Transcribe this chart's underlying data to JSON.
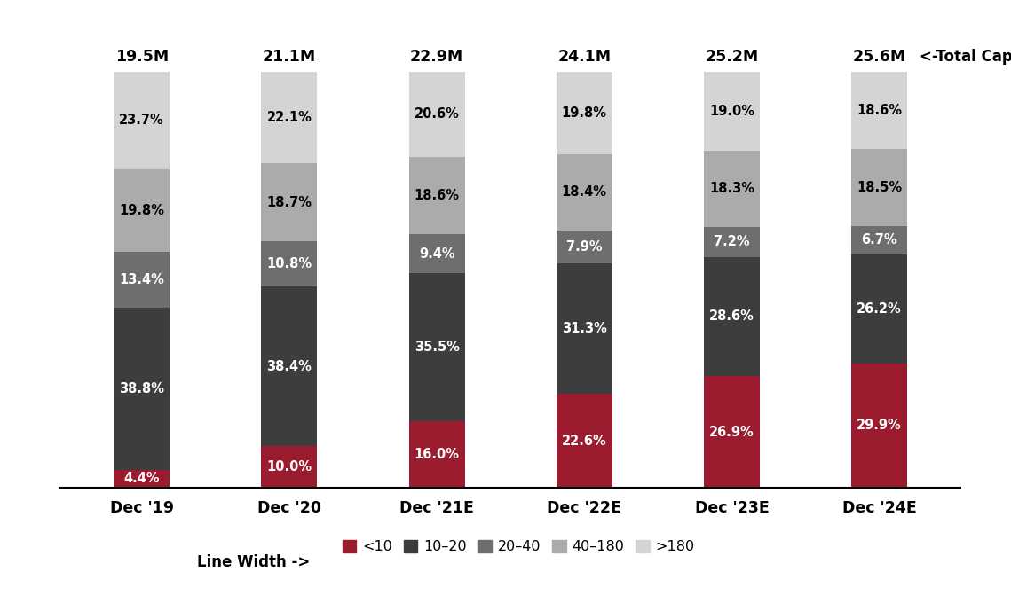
{
  "categories": [
    "Dec '19",
    "Dec '20",
    "Dec '21E",
    "Dec '22E",
    "Dec '23E",
    "Dec '24E"
  ],
  "total_labels": [
    "19.5M",
    "21.1M",
    "22.9M",
    "24.1M",
    "25.2M",
    "25.6M"
  ],
  "series": {
    "<10": [
      4.4,
      10.0,
      16.0,
      22.6,
      26.9,
      29.9
    ],
    "10-20": [
      38.8,
      38.4,
      35.5,
      31.3,
      28.6,
      26.2
    ],
    "20-40": [
      13.4,
      10.8,
      9.4,
      7.9,
      7.2,
      6.7
    ],
    "40-180": [
      19.8,
      18.7,
      18.6,
      18.4,
      18.3,
      18.5
    ],
    ">180": [
      23.7,
      22.1,
      20.6,
      19.8,
      19.0,
      18.6
    ]
  },
  "colors": {
    "<10": "#9B1C2E",
    "10-20": "#3D3D3D",
    "20-40": "#6E6E6E",
    "40-180": "#ABABAB",
    ">180": "#D4D4D4"
  },
  "text_colors": {
    "<10": "#FFFFFF",
    "10-20": "#FFFFFF",
    "20-40": "#FFFFFF",
    "40-180": "#000000",
    ">180": "#000000"
  },
  "legend_labels": [
    "<10",
    "10–20",
    "20–40",
    "40–180",
    ">180"
  ],
  "legend_keys": [
    "<10",
    "10-20",
    "20-40",
    "40-180",
    ">180"
  ],
  "bar_width": 0.38,
  "title_annotation": "<-Total Capacity",
  "legend_title": "Line Width ->",
  "background_color": "#FFFFFF",
  "ylim": [
    0,
    100
  ]
}
